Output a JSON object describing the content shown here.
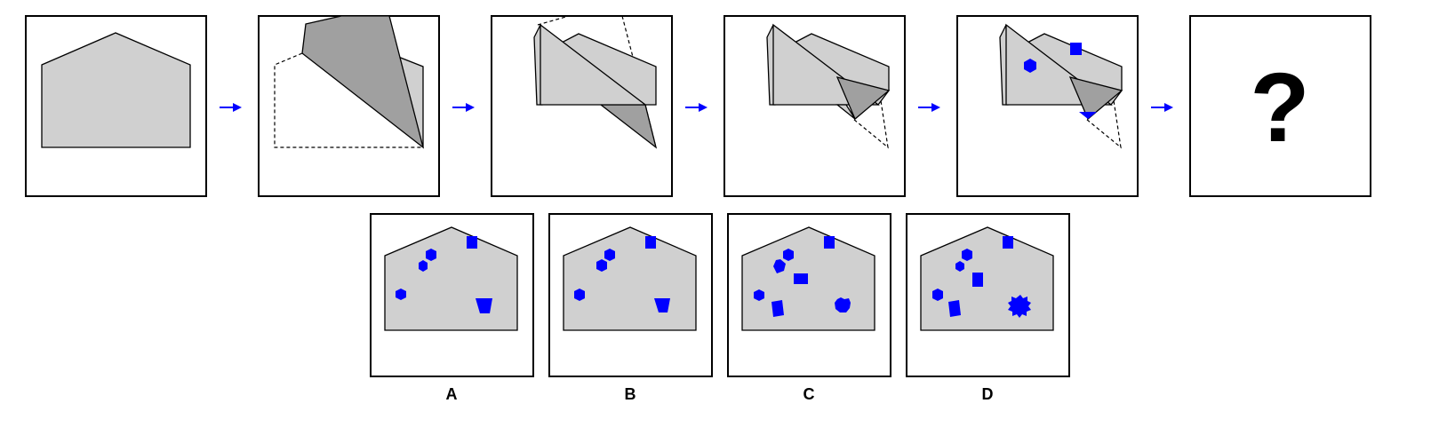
{
  "puzzle": {
    "steps": [
      {
        "fold": "unfolded"
      },
      {
        "fold": "folded-1"
      },
      {
        "fold": "folded-2"
      },
      {
        "fold": "folded-3"
      },
      {
        "fold": "punched"
      },
      {
        "fold": "answer"
      }
    ],
    "question_glyph": "?",
    "arrow_color": "#0000ff",
    "paper_color": "#d0d0d0",
    "fold_color": "#a0a0a0",
    "mark_color": "#0000ff"
  },
  "options": [
    {
      "label": "A"
    },
    {
      "label": "B"
    },
    {
      "label": "C"
    },
    {
      "label": "D"
    }
  ]
}
